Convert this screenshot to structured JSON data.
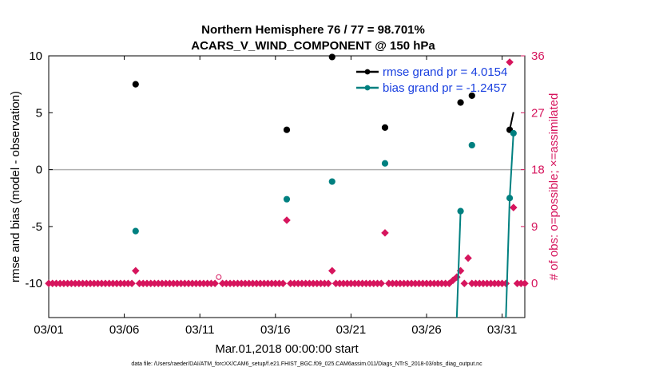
{
  "chart_data": {
    "type": "scatter",
    "title_line1": "Northern Hemisphere 76 / 77 = 98.701%",
    "title_line2": "ACARS_V_WIND_COMPONENT @ 150 hPa",
    "xlabel": "Mar.01,2018 00:00:00 start",
    "ylabel_left": "rmse and bias (model - observation)",
    "ylabel_right": "# of obs: o=possible; ×=assimilated",
    "footer": "data file: /Users/raeder/DAI/ATM_forcXX/CAM6_setup/f.e21.FHIST_BGC.f09_025.CAM6assim.011/Diags_NTrS_2018-03/obs_diag_output.nc",
    "xlim": [
      0,
      31.5
    ],
    "ylim_left": [
      -13,
      10
    ],
    "ylim_right": [
      0,
      36
    ],
    "x_ticks": [
      0,
      5,
      10,
      15,
      20,
      25,
      30
    ],
    "x_tick_labels": [
      "03/01",
      "03/06",
      "03/11",
      "03/16",
      "03/21",
      "03/26",
      "03/31"
    ],
    "y_left_ticks": [
      -10,
      -5,
      0,
      5,
      10
    ],
    "y_left_tick_labels": [
      "-10",
      "-5",
      "0",
      "5",
      "10"
    ],
    "y_right_ticks": [
      0,
      9,
      18,
      27,
      36
    ],
    "y_right_tick_labels": [
      "0",
      "9",
      "18",
      "27",
      "36"
    ],
    "zero_line": 0,
    "legend_position": "top-right",
    "colors": {
      "rmse": "#000000",
      "bias": "#008080",
      "obs": "#d6155d",
      "legend_text": "#1a40e0",
      "zero_line": "#b0b0b0"
    },
    "series": [
      {
        "name": "rmse",
        "legend": "rmse grand pr = 4.0154",
        "points": [
          {
            "x": 5.75,
            "y": 7.5
          },
          {
            "x": 15.75,
            "y": 3.5
          },
          {
            "x": 18.75,
            "y": 9.9
          },
          {
            "x": 22.25,
            "y": 3.7
          },
          {
            "x": 27.25,
            "y": 5.9
          },
          {
            "x": 28.0,
            "y": 6.5
          },
          {
            "x": 30.5,
            "y": 3.5
          }
        ],
        "lines": [
          [
            {
              "x": 30.5,
              "y": 3.5
            },
            {
              "x": 30.75,
              "y": 5.05
            }
          ]
        ]
      },
      {
        "name": "bias",
        "legend": "bias grand pr = -1.2457",
        "points": [
          {
            "x": 5.75,
            "y": -5.4
          },
          {
            "x": 15.75,
            "y": -2.6
          },
          {
            "x": 18.75,
            "y": -1.05
          },
          {
            "x": 22.25,
            "y": 0.55
          },
          {
            "x": 27.25,
            "y": -3.65
          },
          {
            "x": 28.0,
            "y": 2.15
          },
          {
            "x": 30.5,
            "y": -2.5
          },
          {
            "x": 30.75,
            "y": 3.2
          }
        ],
        "lines": [
          [
            {
              "x": 27.0,
              "y": -13.2
            },
            {
              "x": 27.25,
              "y": -3.65
            }
          ],
          [
            {
              "x": 30.25,
              "y": -13.2
            },
            {
              "x": 30.5,
              "y": -2.5
            },
            {
              "x": 30.75,
              "y": 3.2
            }
          ]
        ]
      }
    ],
    "obs_assimilated": {
      "x_start": 0,
      "x_end": 31.5,
      "step": 0.25,
      "baseline": 0,
      "exceptions": [
        {
          "x": 5.75,
          "count": 2
        },
        {
          "x": 11.25,
          "count": null
        },
        {
          "x": 15.75,
          "count": 10
        },
        {
          "x": 18.75,
          "count": 2
        },
        {
          "x": 22.25,
          "count": 8
        },
        {
          "x": 26.75,
          "count": 0.5
        },
        {
          "x": 27.0,
          "count": 1
        },
        {
          "x": 27.25,
          "count": 2
        },
        {
          "x": 27.75,
          "count": 4
        },
        {
          "x": 30.5,
          "count": 35
        },
        {
          "x": 30.75,
          "count": 12
        },
        {
          "x": 31.25,
          "count": 0
        }
      ]
    },
    "obs_possible_only": [
      {
        "x": 11.25,
        "count": 1
      }
    ]
  }
}
